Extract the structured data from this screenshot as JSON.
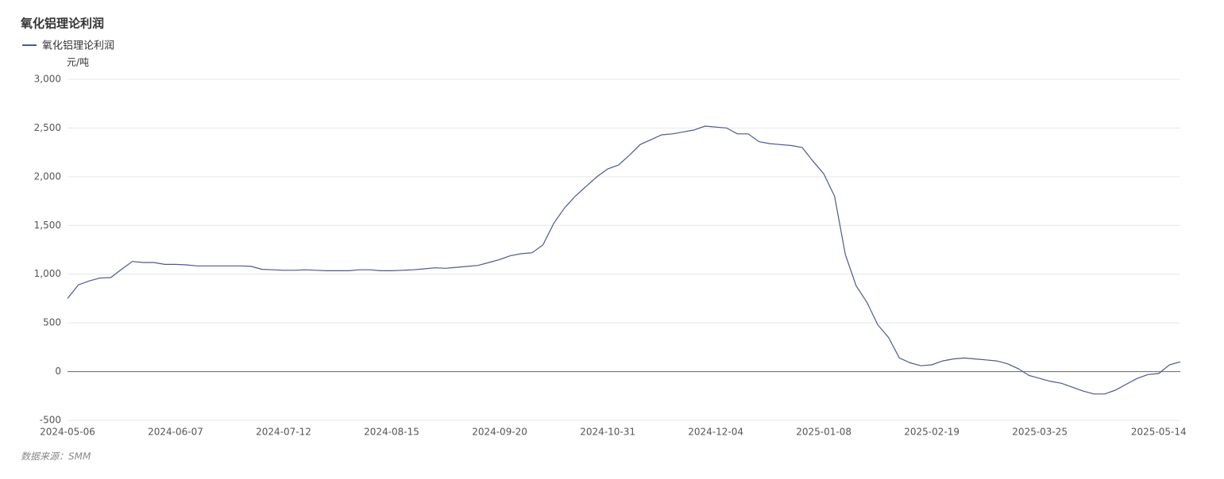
{
  "chart_data": {
    "type": "line",
    "title": "氧化铝理论利润",
    "y_unit": "元/吨",
    "source": "数据来源：SMM",
    "categories": [
      "2024-05-06",
      null,
      null,
      null,
      null,
      null,
      null,
      null,
      null,
      null,
      "2024-06-07",
      null,
      null,
      null,
      null,
      null,
      null,
      null,
      null,
      null,
      "2024-07-12",
      null,
      null,
      null,
      null,
      null,
      null,
      null,
      null,
      null,
      "2024-08-15",
      null,
      null,
      null,
      null,
      null,
      null,
      null,
      null,
      null,
      "2024-09-20",
      null,
      null,
      null,
      null,
      null,
      null,
      null,
      null,
      null,
      "2024-10-31",
      null,
      null,
      null,
      null,
      null,
      null,
      null,
      null,
      null,
      "2024-12-04",
      null,
      null,
      null,
      null,
      null,
      null,
      null,
      null,
      null,
      "2025-01-08",
      null,
      null,
      null,
      null,
      null,
      null,
      null,
      null,
      null,
      "2025-02-19",
      null,
      null,
      null,
      null,
      null,
      null,
      null,
      null,
      null,
      "2025-03-25",
      null,
      null,
      null,
      null,
      null,
      null,
      null,
      null,
      null,
      null,
      "2025-05-14",
      null,
      null
    ],
    "series": [
      {
        "name": "氧化铝理论利润",
        "color": "#4a5896",
        "values": [
          750,
          890,
          930,
          960,
          965,
          1050,
          1130,
          1120,
          1120,
          1100,
          1100,
          1095,
          1085,
          1085,
          1085,
          1085,
          1085,
          1080,
          1050,
          1045,
          1040,
          1040,
          1045,
          1040,
          1035,
          1035,
          1035,
          1045,
          1045,
          1035,
          1035,
          1040,
          1045,
          1055,
          1065,
          1060,
          1070,
          1080,
          1090,
          1120,
          1150,
          1190,
          1210,
          1220,
          1300,
          1520,
          1680,
          1800,
          1900,
          2000,
          2080,
          2120,
          2220,
          2330,
          2380,
          2430,
          2440,
          2460,
          2480,
          2520,
          2510,
          2500,
          2440,
          2440,
          2360,
          2340,
          2330,
          2320,
          2300,
          2160,
          2030,
          1800,
          1200,
          880,
          710,
          480,
          350,
          140,
          90,
          60,
          70,
          110,
          130,
          140,
          130,
          120,
          110,
          80,
          30,
          -40,
          -70,
          -100,
          -120,
          -160,
          -200,
          -230,
          -230,
          -190,
          -130,
          -70,
          -30,
          -20,
          70,
          100
        ]
      }
    ],
    "ylim": [
      -500,
      3000
    ],
    "yticks": [
      -500,
      0,
      500,
      {
        "value": 1000,
        "label": "1,000"
      },
      {
        "value": 1500,
        "label": "1,500"
      },
      {
        "value": 2000,
        "label": "2,000"
      },
      {
        "value": 2500,
        "label": "2,500"
      },
      {
        "value": 3000,
        "label": "3,000"
      }
    ],
    "grid": true
  }
}
